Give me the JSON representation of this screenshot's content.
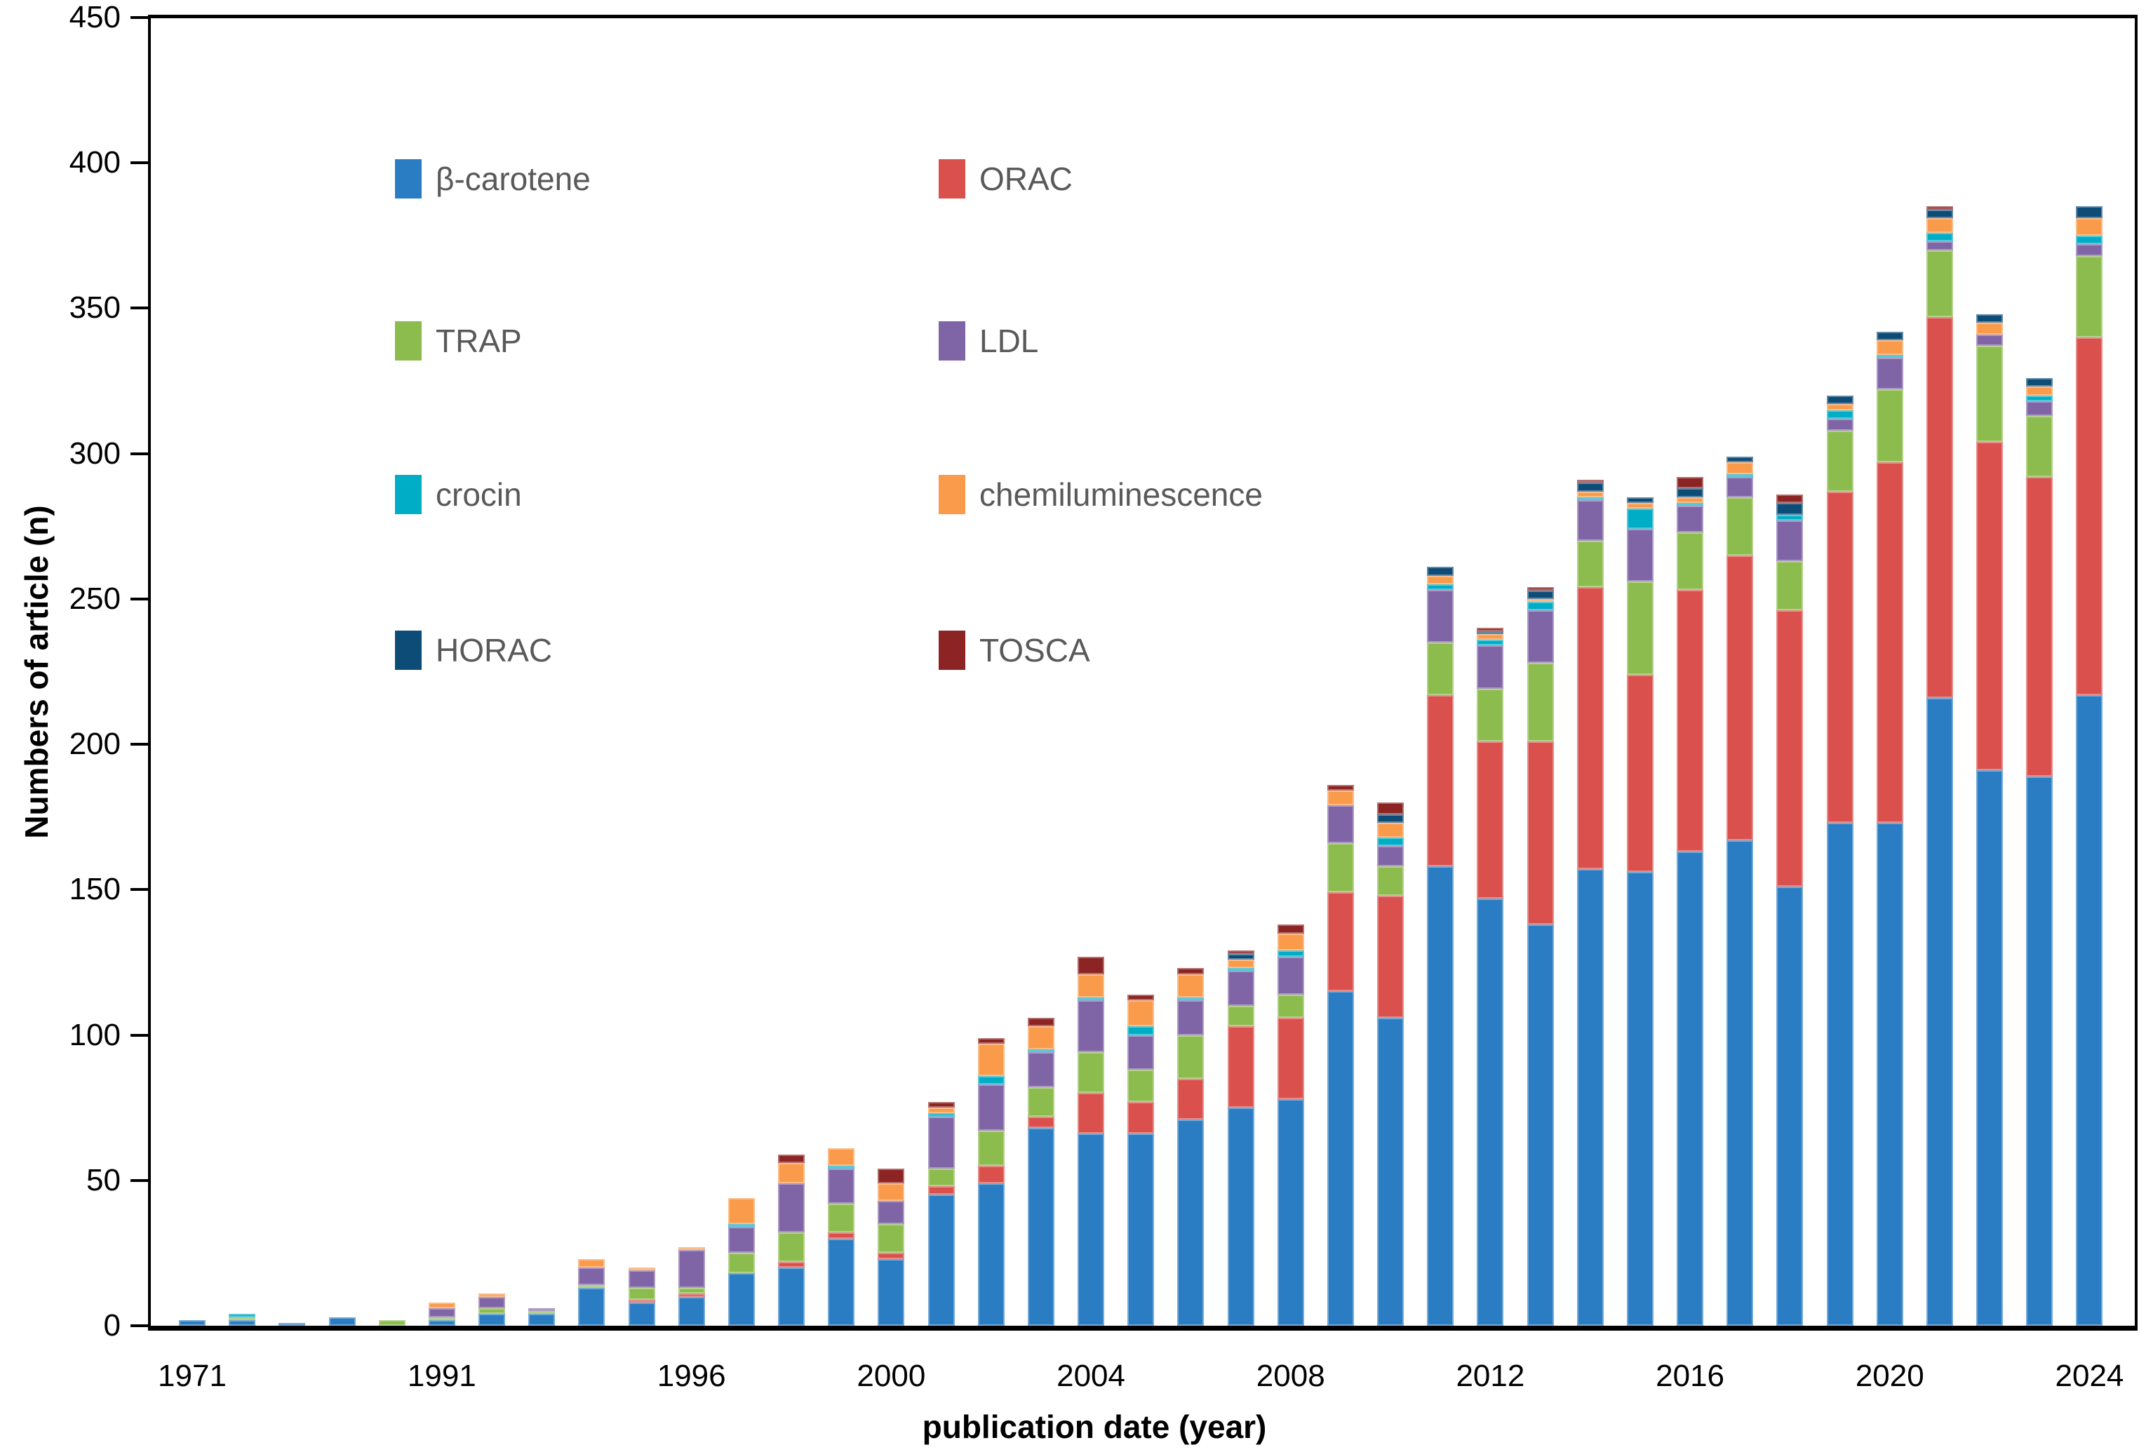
{
  "chart_data": {
    "type": "bar",
    "stacked": true,
    "title": "",
    "xlabel": "publication date (year)",
    "ylabel": "Numbers of article (n)",
    "ylim": [
      0,
      450
    ],
    "ytick_step": 50,
    "yticks": [
      0,
      50,
      100,
      150,
      200,
      250,
      300,
      350,
      400,
      450
    ],
    "grid": false,
    "legend_position": "inside top-left, two columns",
    "plot_border": true,
    "series": [
      {
        "key": "beta-carotene",
        "name": "β-carotene",
        "color": "#2A7DC2"
      },
      {
        "key": "orac",
        "name": "ORAC",
        "color": "#D9504C"
      },
      {
        "key": "trap",
        "name": "TRAP",
        "color": "#8CBB4E"
      },
      {
        "key": "ldl",
        "name": "LDL",
        "color": "#8065A6"
      },
      {
        "key": "crocin",
        "name": "crocin",
        "color": "#00ADC6"
      },
      {
        "key": "chemiluminescence",
        "name": "chemiluminescence",
        "color": "#FA9A4B"
      },
      {
        "key": "horac",
        "name": "HORAC",
        "color": "#0E4C78"
      },
      {
        "key": "tosca",
        "name": "TOSCA",
        "color": "#8B2423"
      }
    ],
    "x_axis_note": "39 year-category bars; only some bars carry visible tick labels",
    "bars": [
      {
        "label": "1971",
        "values": [
          2,
          0,
          0,
          0,
          0,
          0,
          0,
          0
        ]
      },
      {
        "label": "",
        "values": [
          2,
          0,
          1,
          0,
          1,
          0,
          0,
          0
        ]
      },
      {
        "label": "",
        "values": [
          1,
          0,
          0,
          0,
          0,
          0,
          0,
          0
        ]
      },
      {
        "label": "",
        "values": [
          3,
          0,
          0,
          0,
          0,
          0,
          0,
          0
        ]
      },
      {
        "label": "",
        "values": [
          0,
          0,
          2,
          0,
          0,
          0,
          0,
          0
        ]
      },
      {
        "label": "1991",
        "values": [
          2,
          0,
          1,
          3,
          0,
          2,
          0,
          0
        ]
      },
      {
        "label": "",
        "values": [
          4,
          0,
          2,
          4,
          0,
          1,
          0,
          0
        ]
      },
      {
        "label": "",
        "values": [
          4,
          0,
          1,
          1,
          0,
          0,
          0,
          0
        ]
      },
      {
        "label": "",
        "values": [
          13,
          0,
          1,
          6,
          0,
          3,
          0,
          0
        ]
      },
      {
        "label": "",
        "values": [
          8,
          1,
          4,
          6,
          0,
          1,
          0,
          0
        ]
      },
      {
        "label": "1996",
        "values": [
          10,
          1,
          2,
          13,
          0,
          1,
          0,
          0
        ]
      },
      {
        "label": "",
        "values": [
          18,
          0,
          7,
          9,
          1,
          9,
          0,
          0
        ]
      },
      {
        "label": "",
        "values": [
          20,
          2,
          10,
          17,
          0,
          7,
          0,
          3
        ]
      },
      {
        "label": "",
        "values": [
          30,
          2,
          10,
          12,
          1,
          6,
          0,
          0
        ]
      },
      {
        "label": "2000",
        "values": [
          23,
          2,
          10,
          8,
          0,
          6,
          0,
          5
        ]
      },
      {
        "label": "",
        "values": [
          45,
          3,
          6,
          18,
          1,
          2,
          0,
          2
        ]
      },
      {
        "label": "",
        "values": [
          49,
          6,
          12,
          16,
          3,
          11,
          0,
          2
        ]
      },
      {
        "label": "",
        "values": [
          68,
          4,
          10,
          12,
          1,
          8,
          0,
          3
        ]
      },
      {
        "label": "2004",
        "values": [
          66,
          14,
          14,
          18,
          1,
          8,
          0,
          6
        ]
      },
      {
        "label": "",
        "values": [
          66,
          11,
          11,
          12,
          3,
          9,
          0,
          2
        ]
      },
      {
        "label": "",
        "values": [
          71,
          14,
          15,
          12,
          1,
          8,
          0,
          2
        ]
      },
      {
        "label": "",
        "values": [
          75,
          28,
          7,
          12,
          1,
          3,
          2,
          1
        ]
      },
      {
        "label": "2008",
        "values": [
          78,
          28,
          8,
          13,
          2,
          6,
          0,
          3
        ]
      },
      {
        "label": "",
        "values": [
          115,
          34,
          17,
          13,
          0,
          5,
          0,
          2
        ]
      },
      {
        "label": "",
        "values": [
          106,
          42,
          10,
          7,
          3,
          5,
          3,
          4
        ]
      },
      {
        "label": "",
        "values": [
          158,
          59,
          18,
          18,
          2,
          3,
          3,
          0
        ]
      },
      {
        "label": "2012",
        "values": [
          147,
          54,
          18,
          15,
          2,
          2,
          1,
          1
        ]
      },
      {
        "label": "",
        "values": [
          138,
          63,
          27,
          18,
          3,
          1,
          3,
          1
        ]
      },
      {
        "label": "",
        "values": [
          157,
          97,
          16,
          14,
          1,
          2,
          3,
          1
        ]
      },
      {
        "label": "",
        "values": [
          156,
          68,
          32,
          18,
          7,
          2,
          2,
          0
        ]
      },
      {
        "label": "2016",
        "values": [
          163,
          90,
          20,
          9,
          1,
          2,
          3,
          4
        ]
      },
      {
        "label": "",
        "values": [
          167,
          98,
          20,
          7,
          1,
          4,
          2,
          0
        ]
      },
      {
        "label": "",
        "values": [
          151,
          95,
          17,
          14,
          2,
          0,
          4,
          3
        ]
      },
      {
        "label": "",
        "values": [
          173,
          114,
          21,
          4,
          3,
          2,
          3,
          0
        ]
      },
      {
        "label": "2020",
        "values": [
          173,
          124,
          25,
          11,
          1,
          5,
          3,
          0
        ]
      },
      {
        "label": "",
        "values": [
          216,
          131,
          23,
          3,
          3,
          5,
          3,
          1
        ]
      },
      {
        "label": "",
        "values": [
          191,
          113,
          33,
          4,
          0,
          4,
          3,
          0
        ]
      },
      {
        "label": "",
        "values": [
          189,
          103,
          21,
          5,
          2,
          3,
          3,
          0
        ]
      },
      {
        "label": "2024",
        "values": [
          217,
          123,
          28,
          4,
          3,
          6,
          4,
          0
        ]
      }
    ]
  },
  "legend": {
    "columns": [
      [
        "β-carotene",
        "TRAP",
        "crocin",
        "HORAC"
      ],
      [
        "ORAC",
        "LDL",
        "chemiluminescence",
        "TOSCA"
      ]
    ]
  }
}
